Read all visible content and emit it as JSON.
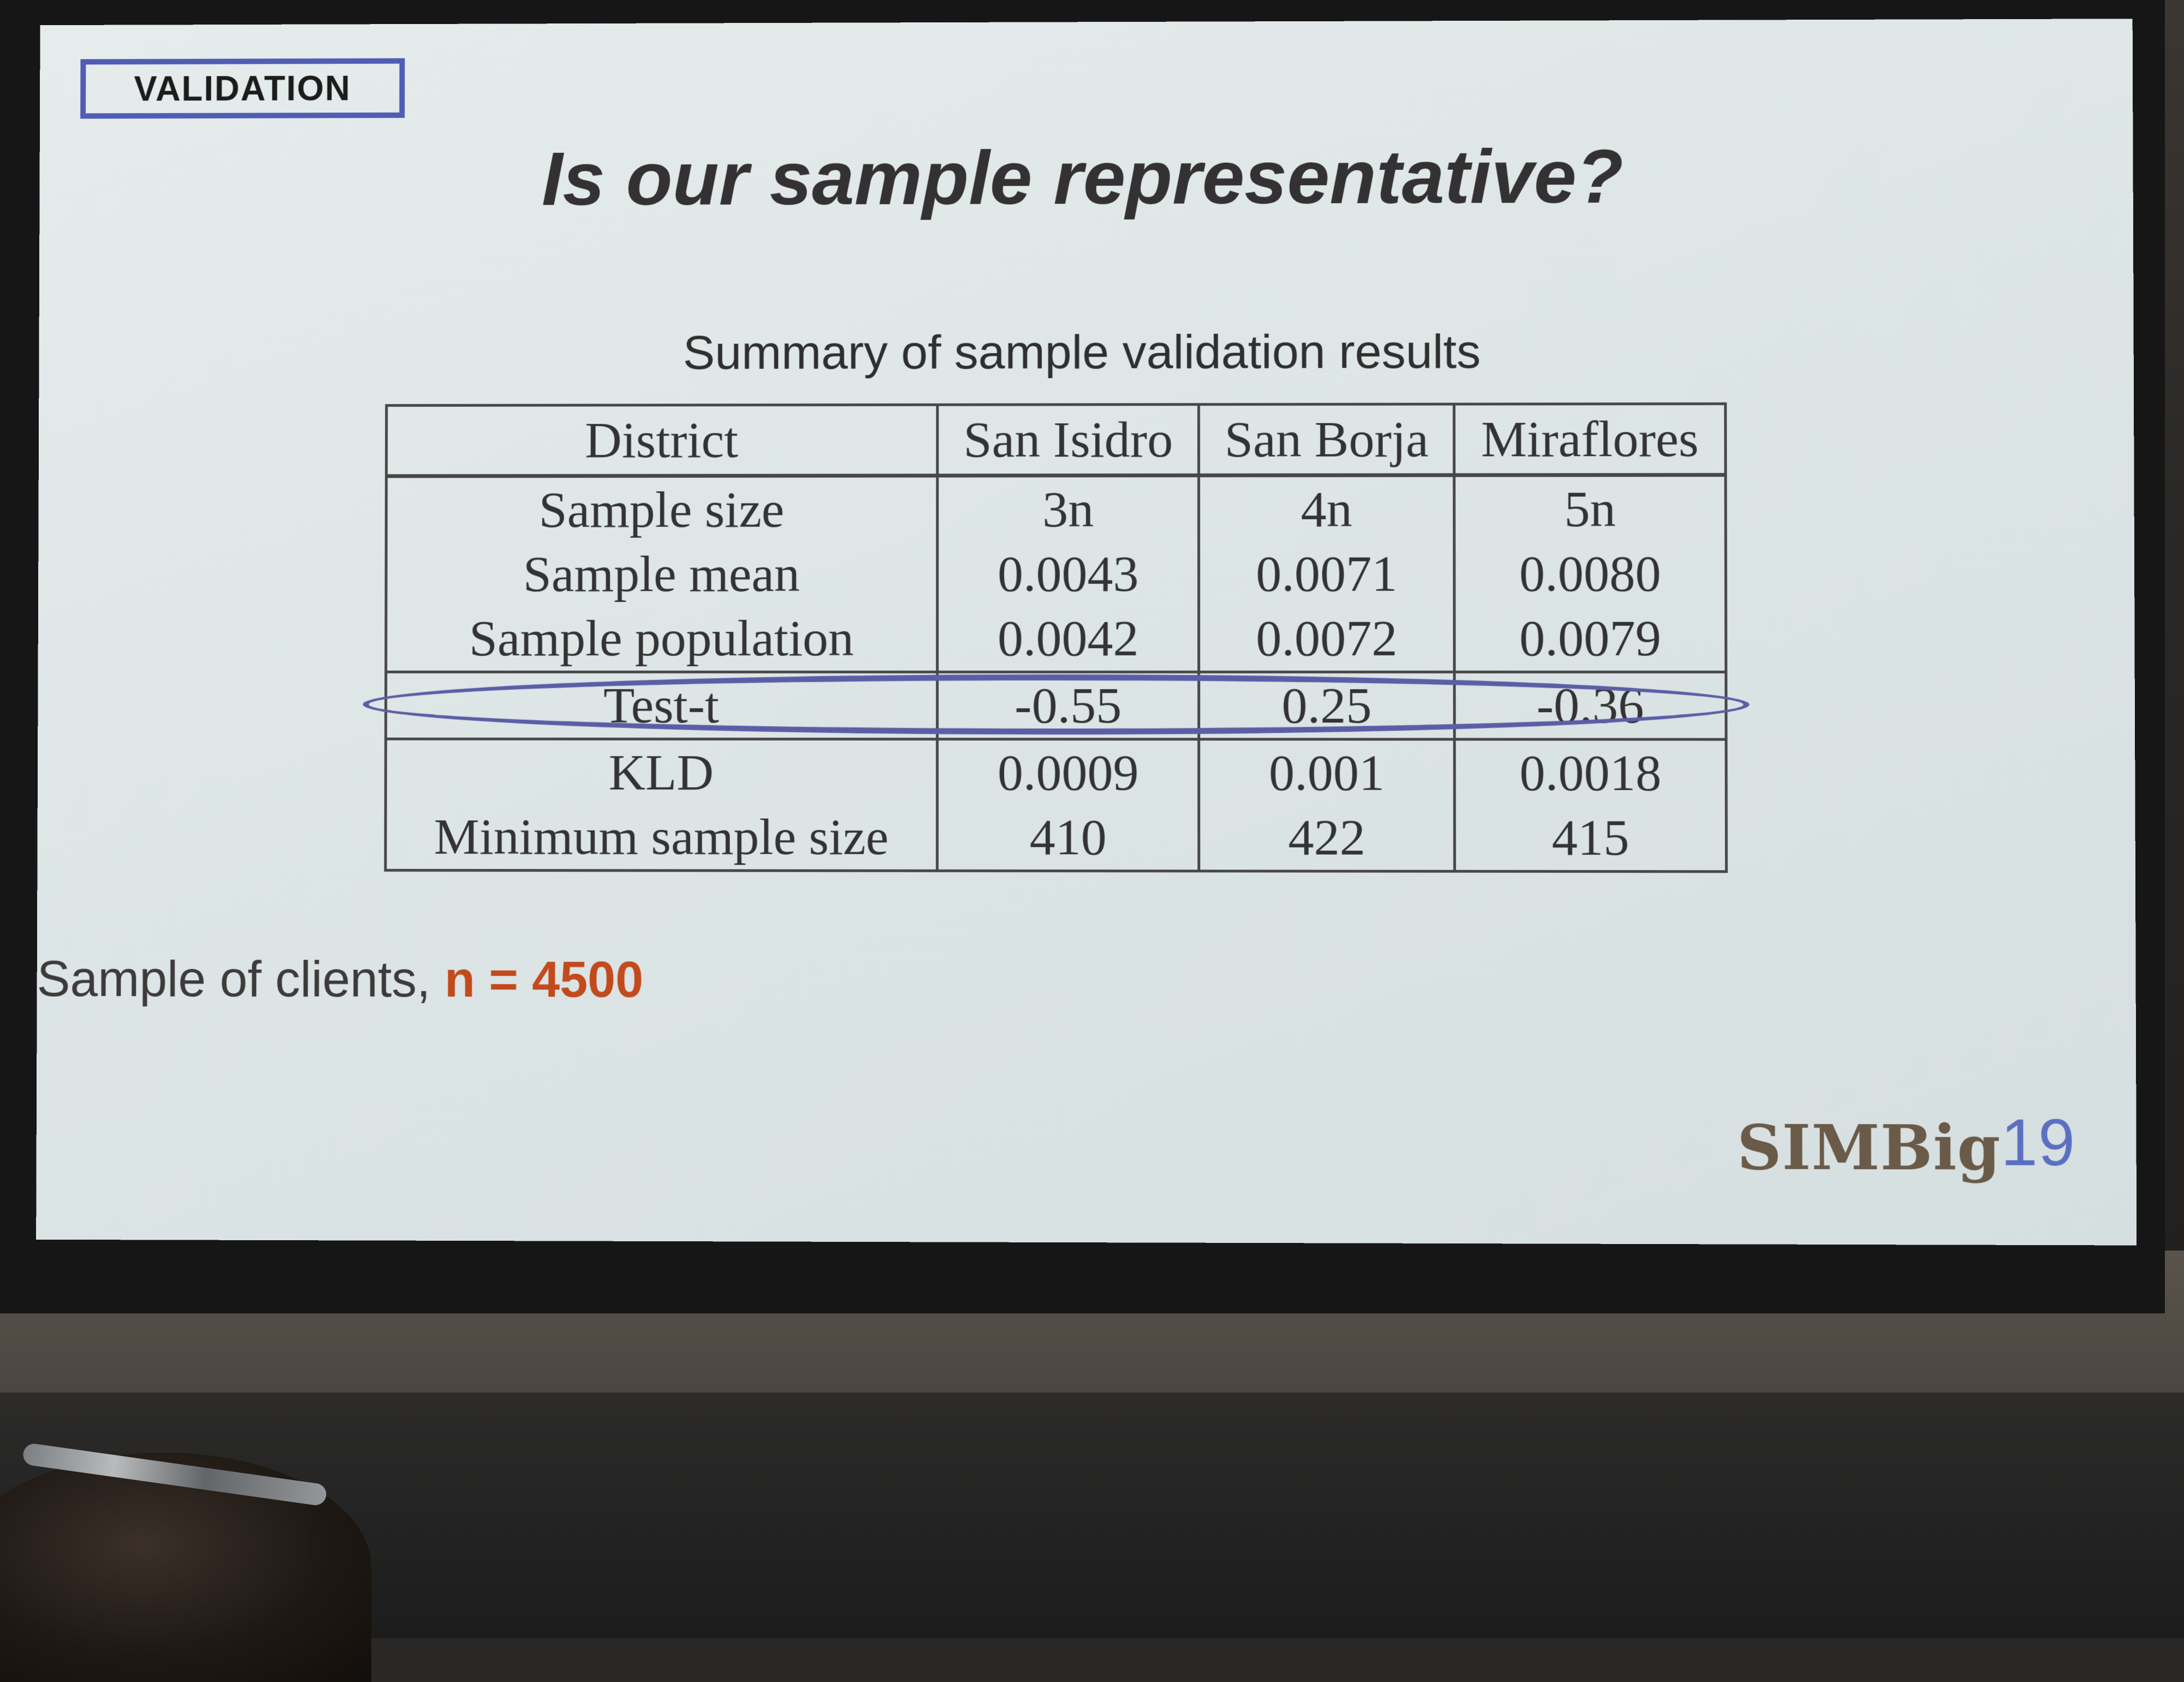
{
  "slide": {
    "section_badge": "VALIDATION",
    "title": "Is our sample representative?",
    "table_caption": "Summary of sample validation results",
    "table": {
      "columns": [
        "District",
        "San Isidro",
        "San Borja",
        "Miraflores"
      ],
      "rows": [
        {
          "label": "Sample size",
          "values": [
            "3n",
            "4n",
            "5n"
          ]
        },
        {
          "label": "Sample mean",
          "values": [
            "0.0043",
            "0.0071",
            "0.0080"
          ]
        },
        {
          "label": "Sample population",
          "values": [
            "0.0042",
            "0.0072",
            "0.0079"
          ]
        },
        {
          "label": "Test-t",
          "values": [
            "-0.55",
            "0.25",
            "-0.36"
          ]
        },
        {
          "label": "KLD",
          "values": [
            "0.0009",
            "0.001",
            "0.0018"
          ]
        },
        {
          "label": "Minimum sample size",
          "values": [
            "410",
            "422",
            "415"
          ]
        }
      ],
      "highlighted_row": "Test-t"
    },
    "note": {
      "prefix": "Sample of clients, ",
      "value": "n = 4500"
    },
    "logo": {
      "text": "SIMBig",
      "number": "19"
    }
  }
}
